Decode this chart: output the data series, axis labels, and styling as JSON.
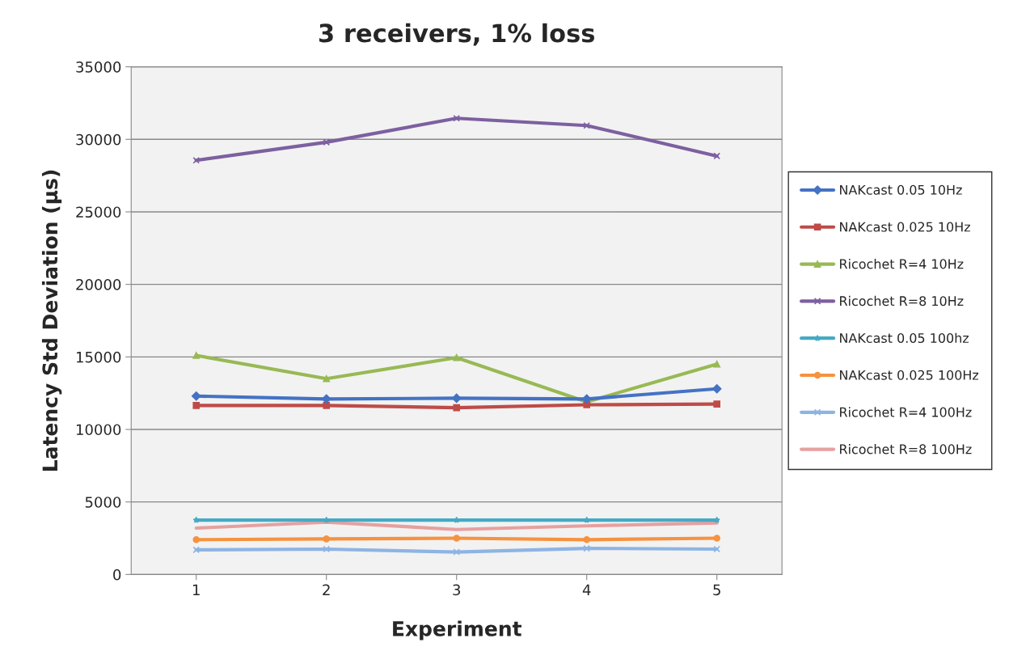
{
  "chart_data": {
    "type": "line",
    "title": "3 receivers, 1% loss",
    "xlabel": "Experiment",
    "ylabel": "Latency Std Deviation (µs)",
    "categories": [
      "1",
      "2",
      "3",
      "4",
      "5"
    ],
    "ylim": [
      0,
      35000
    ],
    "yticks": [
      0,
      5000,
      10000,
      15000,
      20000,
      25000,
      30000,
      35000
    ],
    "grid": "y",
    "legend": "right",
    "series": [
      {
        "name": "NAKcast 0.05 10Hz",
        "color": "#4472c4",
        "marker": "diamond",
        "values": [
          12300,
          12100,
          12150,
          12100,
          12800
        ]
      },
      {
        "name": "NAKcast 0.025 10Hz",
        "color": "#be4b48",
        "marker": "square",
        "values": [
          11650,
          11650,
          11500,
          11700,
          11750
        ]
      },
      {
        "name": "Ricochet R=4 10Hz",
        "color": "#98b954",
        "marker": "triangle",
        "values": [
          15100,
          13500,
          14950,
          11900,
          14500
        ]
      },
      {
        "name": "Ricochet R=8 10Hz",
        "color": "#7d60a0",
        "marker": "cross",
        "values": [
          28550,
          29800,
          31450,
          30950,
          28850
        ]
      },
      {
        "name": "NAKcast 0.05 100hz",
        "color": "#46aac5",
        "marker": "star",
        "values": [
          3750,
          3750,
          3750,
          3750,
          3750
        ]
      },
      {
        "name": "NAKcast 0.025 100Hz",
        "color": "#f69240",
        "marker": "circle",
        "values": [
          2400,
          2450,
          2500,
          2400,
          2500
        ]
      },
      {
        "name": "Ricochet R=4 100Hz",
        "color": "#8eb4e3",
        "marker": "cross",
        "values": [
          1700,
          1750,
          1550,
          1800,
          1750
        ]
      },
      {
        "name": "Ricochet R=8 100Hz",
        "color": "#e6a0a0",
        "marker": "none",
        "values": [
          3200,
          3600,
          3100,
          3350,
          3550
        ]
      }
    ]
  }
}
